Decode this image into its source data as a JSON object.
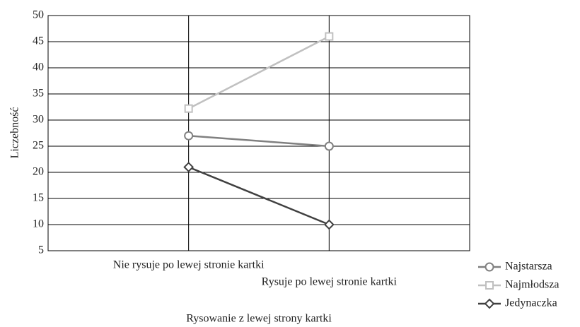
{
  "chart_data": {
    "type": "line",
    "categories": [
      "Nie rysuje po lewej stronie kartki",
      "Rysuje po lewej stronie kartki"
    ],
    "series": [
      {
        "name": "Najstarsza",
        "color": "#808080",
        "marker": "circle",
        "values": [
          27,
          25
        ]
      },
      {
        "name": "Najmłodsza",
        "color": "#c0c0c0",
        "marker": "square",
        "values": [
          32.2,
          46
        ]
      },
      {
        "name": "Jedynaczka",
        "color": "#404040",
        "marker": "diamond",
        "values": [
          21,
          10
        ]
      }
    ],
    "xlabel": "Rysowanie z lewej strony kartki",
    "ylabel": "Liczebność",
    "ylim": [
      5,
      50
    ],
    "yticks": [
      5,
      10,
      15,
      20,
      25,
      30,
      35,
      40,
      45,
      50
    ],
    "grid": true,
    "legend": "right"
  }
}
